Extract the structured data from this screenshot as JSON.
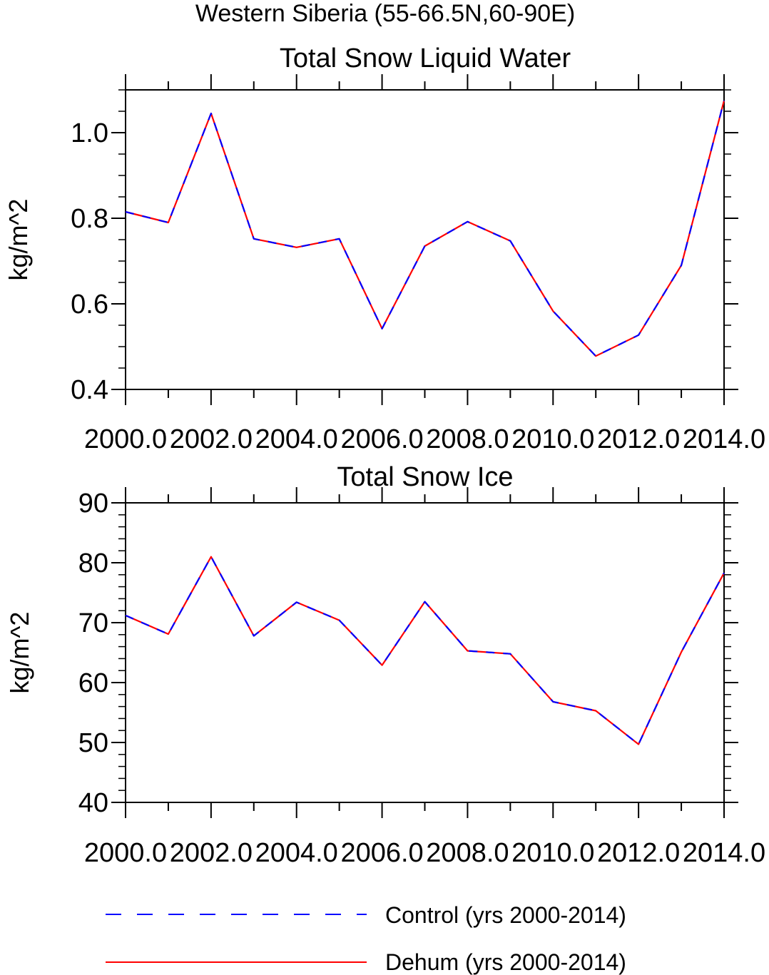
{
  "figure": {
    "suptitle": "Western Siberia (55-66.5N,60-90E)"
  },
  "legend": {
    "placement": "bottom-left",
    "entries": [
      {
        "label": "Control (yrs 2000-2014)",
        "color": "#0000ff",
        "style": "dashed"
      },
      {
        "label": "Dehum (yrs 2000-2014)",
        "color": "#ff0000",
        "style": "solid"
      }
    ]
  },
  "chart_data": [
    {
      "type": "line",
      "title": "Total Snow Liquid Water",
      "xlabel": "",
      "ylabel": "kg/m^2",
      "xlim": [
        2000,
        2014
      ],
      "ylim": [
        0.4,
        1.1
      ],
      "xticks": [
        2000,
        2002,
        2004,
        2006,
        2008,
        2010,
        2012,
        2014
      ],
      "xtick_labels": [
        "2000.0",
        "2002.0",
        "2004.0",
        "2006.0",
        "2008.0",
        "2010.0",
        "2012.0",
        "2014.0"
      ],
      "yticks": [
        0.4,
        0.6,
        0.8,
        1.0
      ],
      "ytick_labels": [
        "0.4",
        "0.6",
        "0.8",
        "1.0"
      ],
      "y_minor_step": 0.05,
      "grid": false,
      "x": [
        2000,
        2001,
        2002,
        2003,
        2004,
        2005,
        2006,
        2007,
        2008,
        2009,
        2010,
        2011,
        2012,
        2013,
        2014
      ],
      "series": [
        {
          "name": "Dehum (yrs 2000-2014)",
          "color": "#ff0000",
          "style": "solid",
          "values": [
            0.815,
            0.79,
            1.045,
            0.752,
            0.732,
            0.752,
            0.542,
            0.735,
            0.792,
            0.747,
            0.583,
            0.478,
            0.527,
            0.69,
            1.075
          ]
        },
        {
          "name": "Control (yrs 2000-2014)",
          "color": "#0000ff",
          "style": "dashed",
          "values": [
            0.815,
            0.79,
            1.045,
            0.752,
            0.732,
            0.752,
            0.542,
            0.735,
            0.792,
            0.747,
            0.583,
            0.478,
            0.527,
            0.69,
            1.075
          ]
        }
      ]
    },
    {
      "type": "line",
      "title": "Total Snow Ice",
      "xlabel": "",
      "ylabel": "kg/m^2",
      "xlim": [
        2000,
        2014
      ],
      "ylim": [
        40,
        90
      ],
      "xticks": [
        2000,
        2002,
        2004,
        2006,
        2008,
        2010,
        2012,
        2014
      ],
      "xtick_labels": [
        "2000.0",
        "2002.0",
        "2004.0",
        "2006.0",
        "2008.0",
        "2010.0",
        "2012.0",
        "2014.0"
      ],
      "yticks": [
        40,
        50,
        60,
        70,
        80,
        90
      ],
      "ytick_labels": [
        "40",
        "50",
        "60",
        "70",
        "80",
        "90"
      ],
      "y_minor_step": 2,
      "grid": false,
      "x": [
        2000,
        2001,
        2002,
        2003,
        2004,
        2005,
        2006,
        2007,
        2008,
        2009,
        2010,
        2011,
        2012,
        2013,
        2014
      ],
      "series": [
        {
          "name": "Dehum (yrs 2000-2014)",
          "color": "#ff0000",
          "style": "solid",
          "values": [
            71.2,
            68.1,
            81.0,
            67.8,
            73.4,
            70.4,
            62.9,
            73.5,
            65.3,
            64.8,
            56.8,
            55.3,
            49.7,
            65.1,
            78.3
          ]
        },
        {
          "name": "Control (yrs 2000-2014)",
          "color": "#0000ff",
          "style": "dashed",
          "values": [
            71.2,
            68.1,
            81.0,
            67.8,
            73.4,
            70.4,
            62.9,
            73.5,
            65.3,
            64.8,
            56.8,
            55.3,
            49.7,
            65.1,
            78.3
          ]
        }
      ]
    }
  ]
}
